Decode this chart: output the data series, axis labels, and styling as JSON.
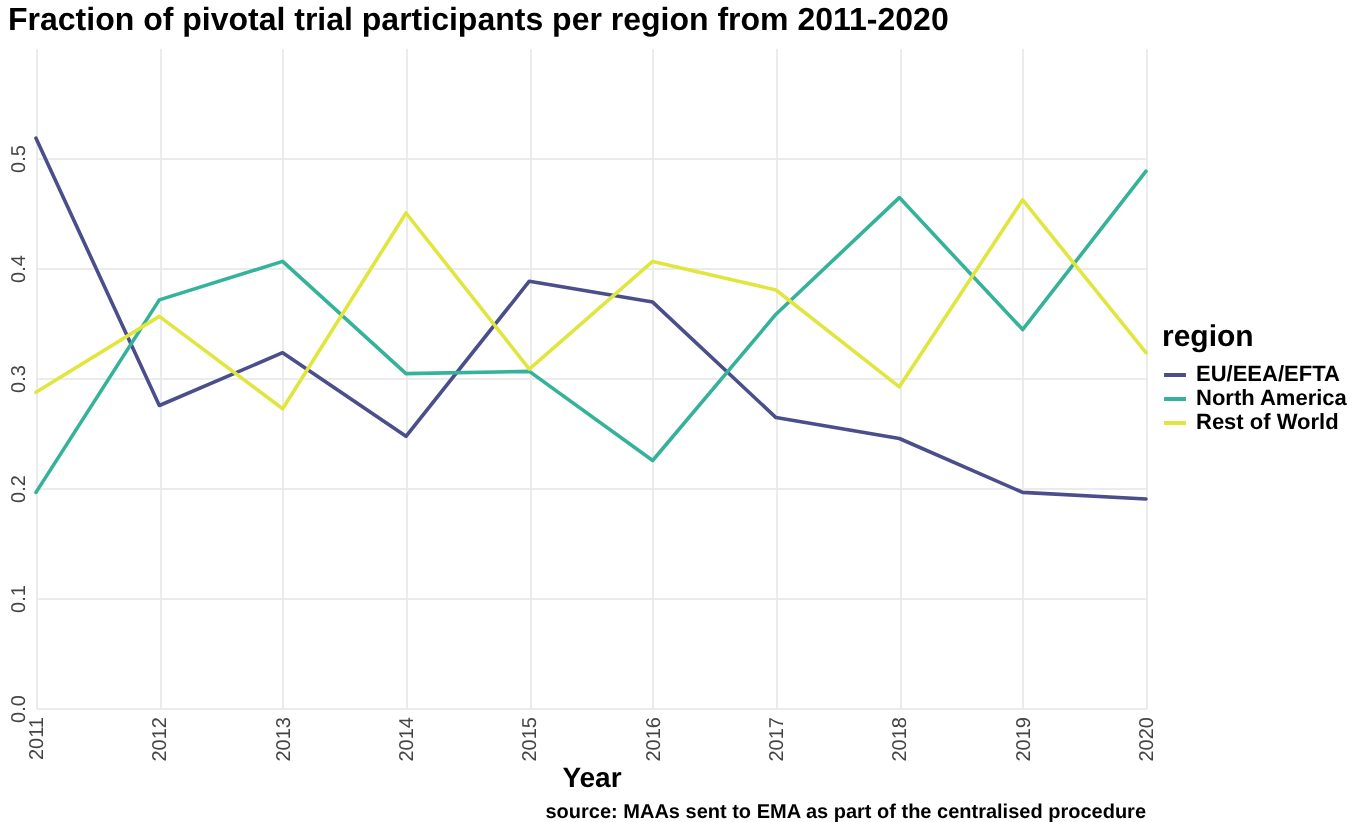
{
  "chart_data": {
    "type": "line",
    "title": "Fraction of pivotal trial participants per region from 2011-2020",
    "xlabel": "Year",
    "legend_title": "region",
    "legend": "right",
    "grid": true,
    "categories": [
      "2011",
      "2012",
      "2013",
      "2014",
      "2015",
      "2016",
      "2017",
      "2018",
      "2019",
      "2020"
    ],
    "series": [
      {
        "name": "EU/EEA/EFTA",
        "color": "#4a4e8a",
        "values": [
          0.518,
          0.275,
          0.323,
          0.247,
          0.388,
          0.369,
          0.264,
          0.245,
          0.196,
          0.19
        ]
      },
      {
        "name": "North America",
        "color": "#35b29a",
        "values": [
          0.196,
          0.371,
          0.406,
          0.304,
          0.306,
          0.225,
          0.358,
          0.464,
          0.344,
          0.488
        ]
      },
      {
        "name": "Rest of World",
        "color": "#e1e63f",
        "values": [
          0.287,
          0.356,
          0.272,
          0.45,
          0.308,
          0.406,
          0.38,
          0.292,
          0.462,
          0.323
        ]
      }
    ],
    "ylim": [
      0,
      0.6
    ],
    "yticks": [
      {
        "value": 0,
        "label": "0.0"
      },
      0.1,
      0.2,
      0.3,
      0.4,
      0.5
    ],
    "annotations": [
      "source: MAAs sent to EMA as part of the centralised procedure"
    ]
  }
}
